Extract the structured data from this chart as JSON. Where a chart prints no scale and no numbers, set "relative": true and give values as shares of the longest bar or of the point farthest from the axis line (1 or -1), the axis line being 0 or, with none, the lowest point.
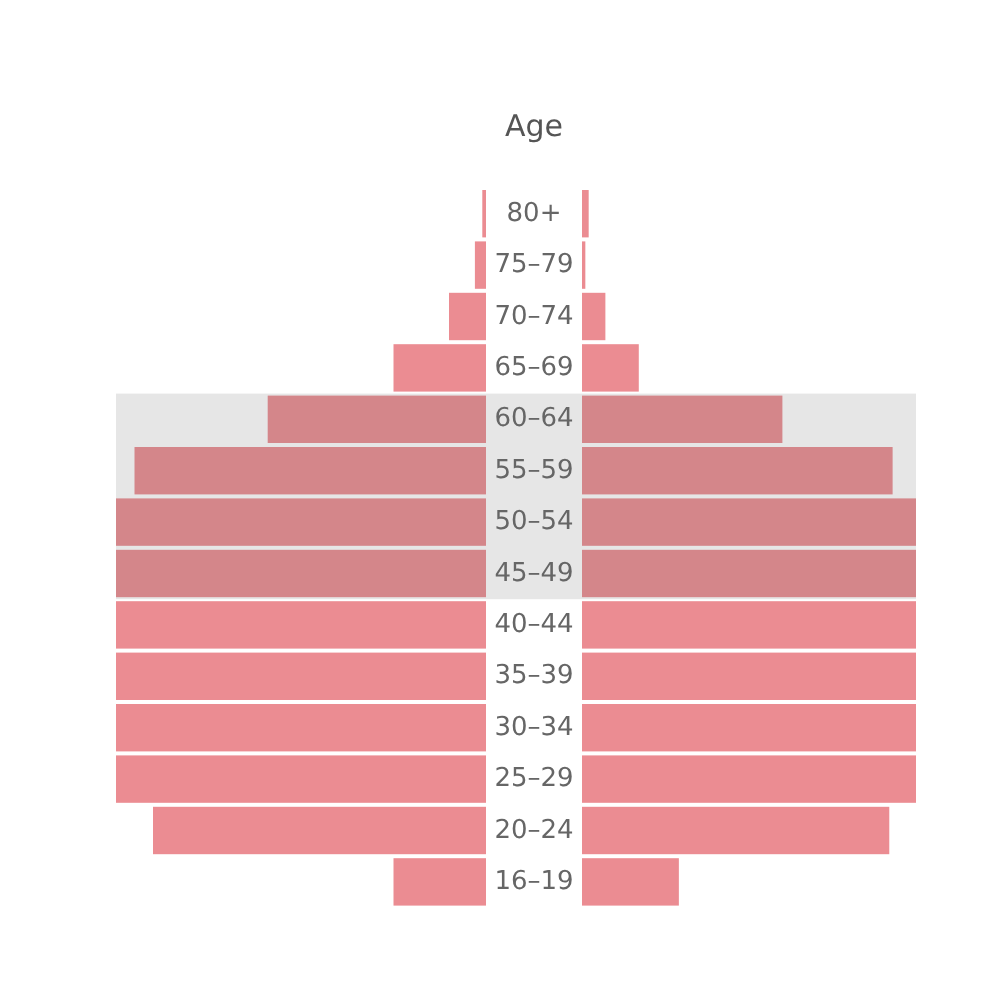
{
  "chart_data": [
    {
      "type": "bar",
      "orientation": "horizontal",
      "relative": true,
      "ylabel": "Age",
      "categories": [
        "80+",
        "75–79",
        "70–74",
        "65–69",
        "60–64",
        "55–59",
        "50–54",
        "45–49",
        "40–44",
        "35–39",
        "30–34",
        "25–29",
        "20–24",
        "16–19"
      ],
      "series": [
        {
          "colors": [
            "#eb8c92",
            "#eb8c92",
            "#eb8c92",
            "#eb8c92",
            "#d4868a",
            "#d4868a",
            "#d4868a",
            "#d4868a",
            "#eb8c92",
            "#eb8c92",
            "#eb8c92",
            "#eb8c92",
            "#eb8c92",
            "#eb8c92"
          ],
          "values": [
            -0.01,
            -0.03,
            -0.1,
            -0.25,
            -0.59,
            -0.95,
            -1,
            -1,
            -1,
            -1,
            -1,
            -1,
            -0.9,
            -0.25
          ]
        }
      ],
      "bands": [
        {
          "axis": "y",
          "from": "60–64",
          "to": "45–49",
          "color": "#e6e6e6"
        }
      ]
    },
    {
      "type": "bar",
      "orientation": "horizontal",
      "relative": true,
      "categories": [
        null,
        null,
        null,
        null,
        null,
        null,
        null,
        null,
        null,
        null,
        null,
        null,
        null,
        null
      ],
      "series": [
        {
          "colors": [
            "#eb8c92",
            "#eb8c92",
            "#eb8c92",
            "#eb8c92",
            "#d4868a",
            "#d4868a",
            "#d4868a",
            "#d4868a",
            "#eb8c92",
            "#eb8c92",
            "#eb8c92",
            "#eb8c92",
            "#eb8c92",
            "#eb8c92"
          ],
          "values": [
            0.02,
            0.01,
            0.07,
            0.17,
            0.6,
            0.93,
            1,
            1,
            1,
            1,
            1,
            1,
            0.92,
            0.29
          ]
        }
      ]
    }
  ]
}
